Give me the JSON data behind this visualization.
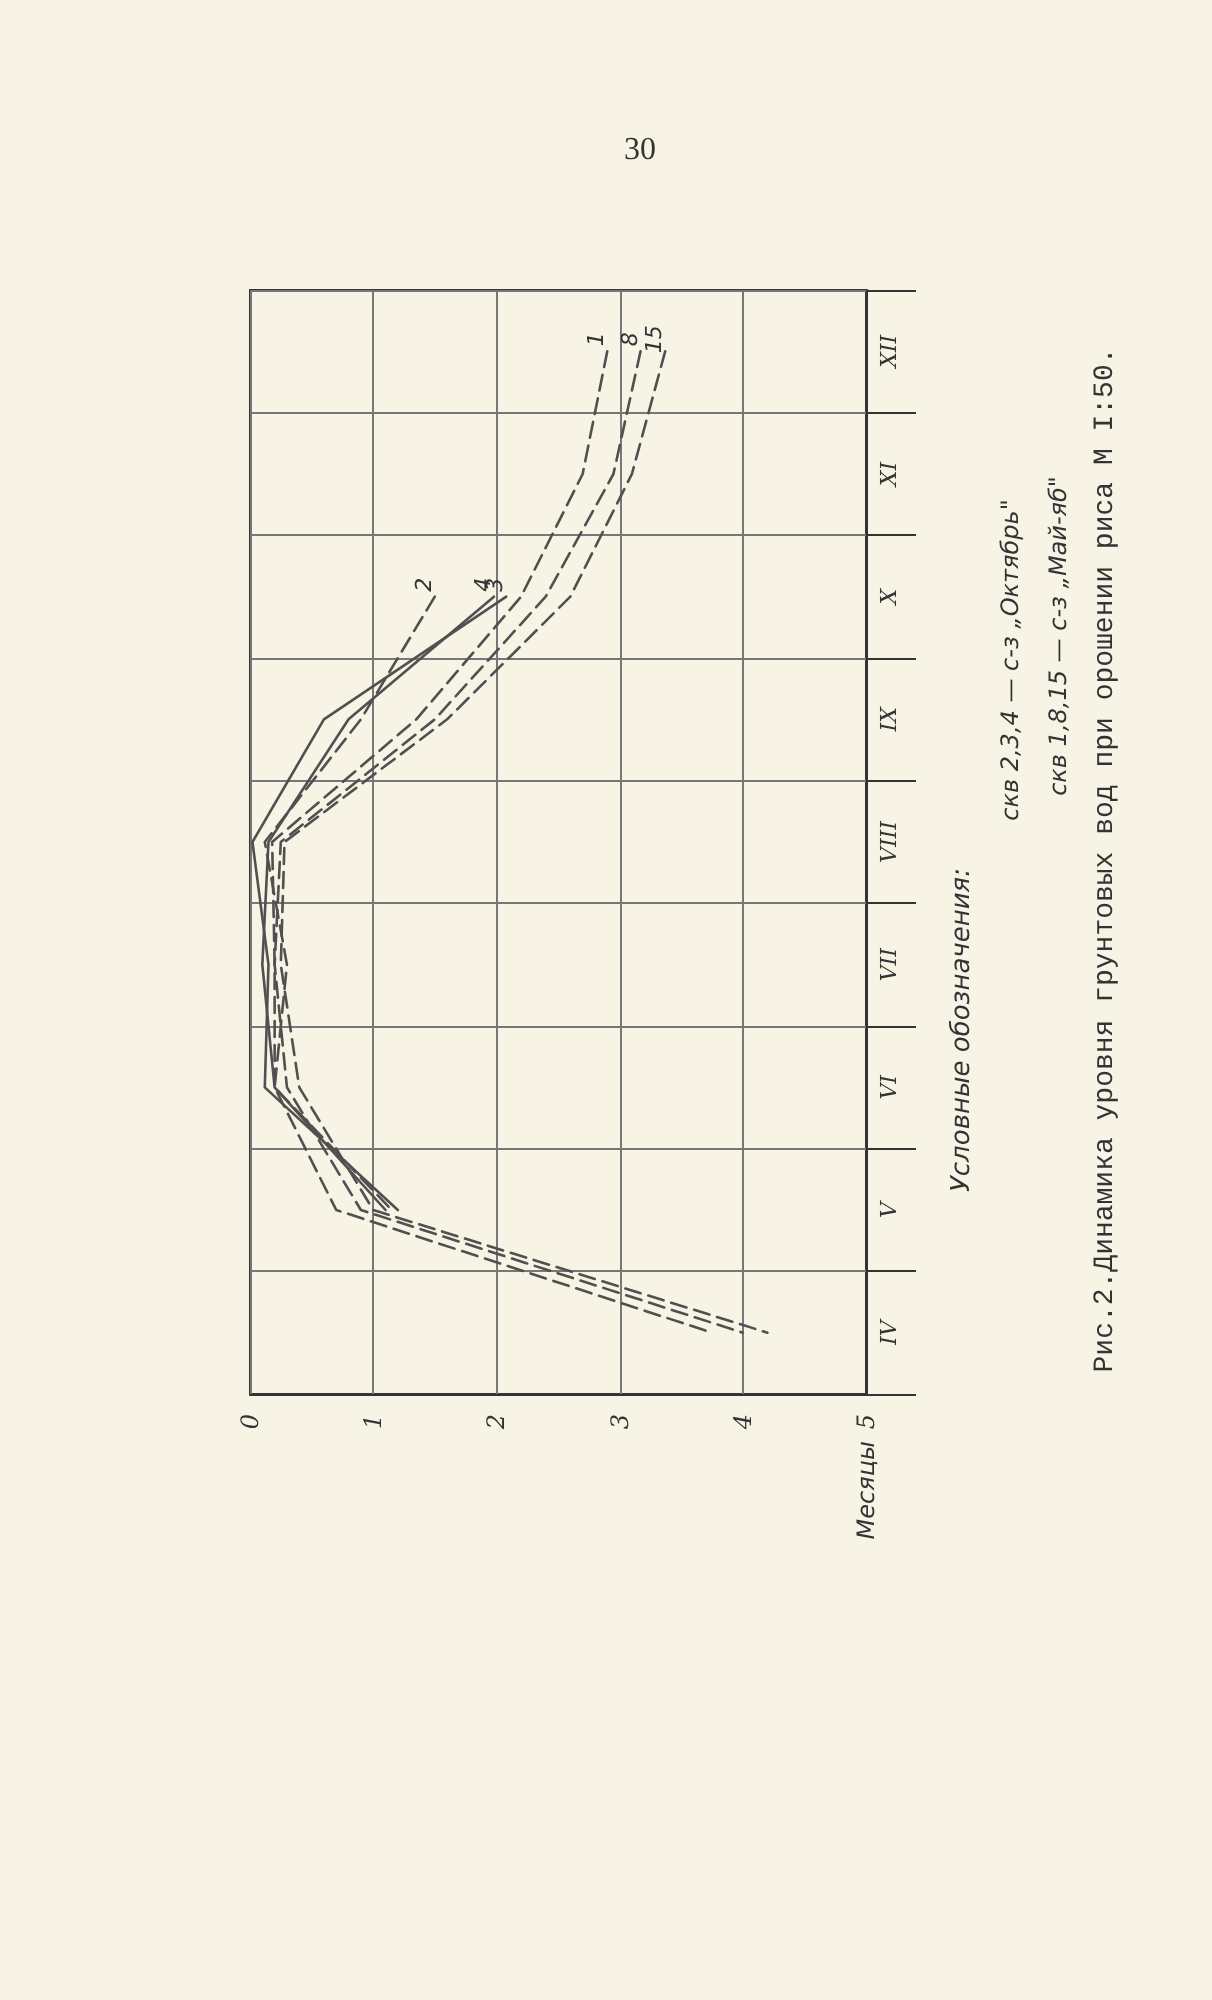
{
  "chart_data": {
    "type": "line",
    "orientation": "horizontal",
    "title": "Рис.2.Динамика уровня грунтовых вод при орошении риса М I:50.",
    "ylabel": "Месяцы",
    "annotations": [
      "30",
      "Условные обозначения:",
      "скв 2,3,4 — с-з „Октябрь\"",
      "скв 1,8,15 — с-з „Май-яб\""
    ],
    "categories": [
      "XII",
      "XI",
      "X",
      "IX",
      "VIII",
      "VII",
      "VI",
      "V",
      "IV"
    ],
    "xlim": [
      0,
      5
    ],
    "xticks": [
      0,
      1,
      2,
      3,
      4,
      5
    ],
    "grid": true,
    "marker": "none",
    "legend": false,
    "series": [
      {
        "name": "1",
        "color": "#505050",
        "line_style": "dashed",
        "values": [
          2.9,
          2.7,
          2.2,
          1.35,
          0.18,
          0.2,
          0.2,
          0.7,
          3.75
        ]
      },
      {
        "name": "8",
        "color": "#505050",
        "line_style": "dashed",
        "values": [
          3.17,
          2.95,
          2.4,
          1.5,
          0.25,
          0.2,
          0.3,
          0.9,
          4.0
        ]
      },
      {
        "name": "15",
        "color": "#505050",
        "line_style": "dashed",
        "values": [
          3.37,
          3.1,
          2.6,
          1.6,
          0.28,
          0.25,
          0.4,
          1.0,
          4.2
        ]
      },
      {
        "name": "2",
        "color": "#505050",
        "line_style": "dashed",
        "values": [
          null,
          null,
          1.5,
          0.9,
          0.12,
          0.3,
          0.2,
          1.15,
          null
        ]
      },
      {
        "name": "3",
        "color": "#505050",
        "line_style": "solid",
        "values": [
          null,
          null,
          2.08,
          0.6,
          0.02,
          0.15,
          0.12,
          1.2,
          null
        ]
      },
      {
        "name": "4",
        "color": "#505050",
        "line_style": "solid",
        "values": [
          null,
          null,
          1.98,
          0.8,
          0.15,
          0.1,
          0.2,
          1.1,
          null
        ]
      }
    ]
  }
}
